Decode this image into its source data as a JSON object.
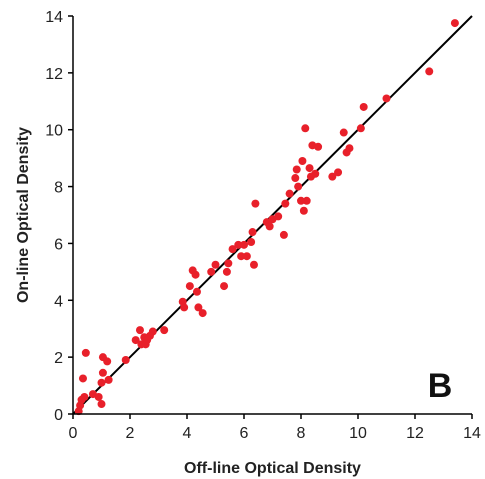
{
  "chart_data": {
    "type": "scatter",
    "xlabel": "Off-line Optical Density",
    "ylabel": "On-line Optical Density",
    "panel_label": "B",
    "xlim": [
      0,
      14
    ],
    "ylim": [
      0,
      14
    ],
    "xticks": [
      0,
      2,
      4,
      6,
      8,
      10,
      12,
      14
    ],
    "yticks": [
      0,
      2,
      4,
      6,
      8,
      10,
      12,
      14
    ],
    "reference_line": {
      "from": [
        0,
        0
      ],
      "to": [
        14,
        14
      ]
    },
    "marker_color": "#e8202a",
    "line_color": "#000000",
    "grid": false,
    "points": [
      [
        0.2,
        0.1
      ],
      [
        0.25,
        0.3
      ],
      [
        0.3,
        0.5
      ],
      [
        0.4,
        0.6
      ],
      [
        0.35,
        1.25
      ],
      [
        0.45,
        2.15
      ],
      [
        0.7,
        0.7
      ],
      [
        0.9,
        0.6
      ],
      [
        1.0,
        1.1
      ],
      [
        1.05,
        1.45
      ],
      [
        1.0,
        0.35
      ],
      [
        1.05,
        2.0
      ],
      [
        1.2,
        1.85
      ],
      [
        1.25,
        1.2
      ],
      [
        1.85,
        1.9
      ],
      [
        2.2,
        2.6
      ],
      [
        2.35,
        2.95
      ],
      [
        2.4,
        2.45
      ],
      [
        2.5,
        2.7
      ],
      [
        2.55,
        2.45
      ],
      [
        2.6,
        2.6
      ],
      [
        2.7,
        2.75
      ],
      [
        2.8,
        2.9
      ],
      [
        3.2,
        2.95
      ],
      [
        3.85,
        3.95
      ],
      [
        3.9,
        3.75
      ],
      [
        4.1,
        4.5
      ],
      [
        4.2,
        5.05
      ],
      [
        4.3,
        4.9
      ],
      [
        4.35,
        4.3
      ],
      [
        4.4,
        3.75
      ],
      [
        4.55,
        3.55
      ],
      [
        4.85,
        5.0
      ],
      [
        5.0,
        5.25
      ],
      [
        5.3,
        4.5
      ],
      [
        5.4,
        5.0
      ],
      [
        5.45,
        5.3
      ],
      [
        5.6,
        5.8
      ],
      [
        5.8,
        5.95
      ],
      [
        5.9,
        5.55
      ],
      [
        6.0,
        5.95
      ],
      [
        6.1,
        5.55
      ],
      [
        6.25,
        6.05
      ],
      [
        6.3,
        6.4
      ],
      [
        6.35,
        5.25
      ],
      [
        6.4,
        7.4
      ],
      [
        6.8,
        6.75
      ],
      [
        6.9,
        6.6
      ],
      [
        7.0,
        6.85
      ],
      [
        7.2,
        6.95
      ],
      [
        7.4,
        6.3
      ],
      [
        7.45,
        7.4
      ],
      [
        7.6,
        7.75
      ],
      [
        7.8,
        8.3
      ],
      [
        7.85,
        8.6
      ],
      [
        7.9,
        8.0
      ],
      [
        8.0,
        7.5
      ],
      [
        8.05,
        8.9
      ],
      [
        8.1,
        7.15
      ],
      [
        8.15,
        10.05
      ],
      [
        8.2,
        7.5
      ],
      [
        8.3,
        8.65
      ],
      [
        8.35,
        8.35
      ],
      [
        8.4,
        9.45
      ],
      [
        8.5,
        8.45
      ],
      [
        8.6,
        9.4
      ],
      [
        9.1,
        8.35
      ],
      [
        9.3,
        8.5
      ],
      [
        9.5,
        9.9
      ],
      [
        9.6,
        9.2
      ],
      [
        9.7,
        9.35
      ],
      [
        10.1,
        10.05
      ],
      [
        10.2,
        10.8
      ],
      [
        11.0,
        11.1
      ],
      [
        12.5,
        12.05
      ],
      [
        13.4,
        13.75
      ]
    ]
  }
}
